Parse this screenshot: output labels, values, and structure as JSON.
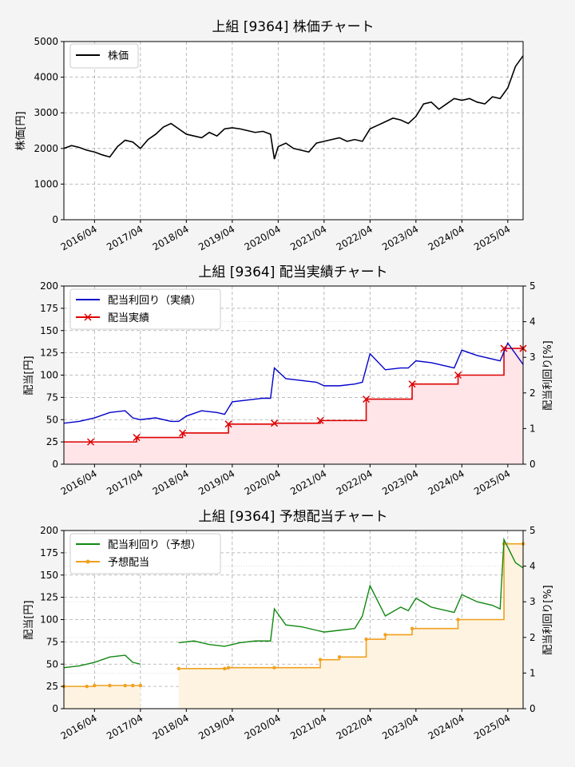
{
  "colors": {
    "background": "#f4f4f4",
    "price": "#000000",
    "actual_yield": "#0000cc",
    "actual_dividend": "#dd0000",
    "actual_fill": "#ffe4e8",
    "forecast_yield": "#118811",
    "forecast_dividend": "#f0a020",
    "forecast_fill": "#fdf3e0"
  },
  "chart_data": [
    {
      "type": "line",
      "title": "上組 [9364]  株価チャート",
      "ylabel": "株価[円]",
      "ylim": [
        0,
        5000
      ],
      "yticks": [
        "0",
        "1000",
        "2000",
        "3000",
        "4000",
        "5000"
      ],
      "x_tick_labels": [
        "2016/04",
        "2017/04",
        "2018/04",
        "2019/04",
        "2020/04",
        "2021/04",
        "2022/04",
        "2023/04",
        "2024/04",
        "2025/04"
      ],
      "x_range": [
        "2015/08",
        "2025/08"
      ],
      "grid": true,
      "legend": {
        "position": "top-left",
        "entries": [
          "株価"
        ]
      },
      "series": [
        {
          "name": "株価",
          "x": [
            "2015/08",
            "2015/10",
            "2015/12",
            "2016/02",
            "2016/04",
            "2016/06",
            "2016/08",
            "2016/10",
            "2016/12",
            "2017/02",
            "2017/04",
            "2017/06",
            "2017/08",
            "2017/10",
            "2017/12",
            "2018/02",
            "2018/04",
            "2018/06",
            "2018/08",
            "2018/10",
            "2018/12",
            "2019/02",
            "2019/04",
            "2019/06",
            "2019/08",
            "2019/10",
            "2019/12",
            "2020/02",
            "2020/03",
            "2020/04",
            "2020/06",
            "2020/08",
            "2020/10",
            "2020/12",
            "2021/02",
            "2021/04",
            "2021/06",
            "2021/08",
            "2021/10",
            "2021/12",
            "2022/02",
            "2022/04",
            "2022/06",
            "2022/08",
            "2022/10",
            "2022/12",
            "2023/02",
            "2023/04",
            "2023/06",
            "2023/08",
            "2023/10",
            "2023/12",
            "2024/02",
            "2024/04",
            "2024/06",
            "2024/08",
            "2024/10",
            "2024/12",
            "2025/02",
            "2025/04",
            "2025/06",
            "2025/08"
          ],
          "y": [
            2000,
            2080,
            2030,
            1950,
            1900,
            1820,
            1760,
            2050,
            2230,
            2180,
            2000,
            2250,
            2400,
            2600,
            2700,
            2550,
            2400,
            2350,
            2300,
            2450,
            2350,
            2550,
            2580,
            2550,
            2500,
            2450,
            2480,
            2400,
            1700,
            2050,
            2150,
            2000,
            1950,
            1900,
            2150,
            2200,
            2250,
            2300,
            2200,
            2250,
            2200,
            2550,
            2650,
            2750,
            2850,
            2800,
            2700,
            2900,
            3250,
            3300,
            3100,
            3250,
            3400,
            3350,
            3400,
            3300,
            3250,
            3450,
            3400,
            3700,
            4300,
            4600
          ]
        }
      ]
    },
    {
      "type": "line",
      "title": "上組 [9364]  配当実績チャート",
      "ylabel": "配当[円]",
      "y2label": "配当利回り[%]",
      "ylim": [
        0,
        200
      ],
      "yticks": [
        "0",
        "25",
        "50",
        "75",
        "100",
        "125",
        "150",
        "175",
        "200"
      ],
      "y2lim": [
        0,
        5
      ],
      "y2ticks": [
        "0",
        "1",
        "2",
        "3",
        "4",
        "5"
      ],
      "x_tick_labels": [
        "2016/04",
        "2017/04",
        "2018/04",
        "2019/04",
        "2020/04",
        "2021/04",
        "2022/04",
        "2023/04",
        "2024/04",
        "2025/04"
      ],
      "x_range": [
        "2015/08",
        "2025/08"
      ],
      "grid": true,
      "legend": {
        "position": "top-left",
        "entries": [
          "配当利回り（実績）",
          "配当実績"
        ]
      },
      "series": [
        {
          "name": "配当利回り（実績）",
          "axis": "right",
          "x": [
            "2015/08",
            "2015/12",
            "2016/04",
            "2016/08",
            "2016/12",
            "2017/02",
            "2017/04",
            "2017/08",
            "2017/12",
            "2018/02",
            "2018/04",
            "2018/08",
            "2018/12",
            "2019/02",
            "2019/04",
            "2019/08",
            "2019/12",
            "2020/02",
            "2020/03",
            "2020/06",
            "2020/10",
            "2021/02",
            "2021/04",
            "2021/08",
            "2021/12",
            "2022/02",
            "2022/04",
            "2022/08",
            "2022/12",
            "2023/02",
            "2023/04",
            "2023/08",
            "2023/12",
            "2024/02",
            "2024/04",
            "2024/08",
            "2024/12",
            "2025/02",
            "2025/04",
            "2025/08"
          ],
          "y": [
            1.15,
            1.2,
            1.3,
            1.45,
            1.5,
            1.3,
            1.25,
            1.3,
            1.2,
            1.2,
            1.35,
            1.5,
            1.45,
            1.4,
            1.75,
            1.8,
            1.85,
            1.85,
            2.7,
            2.4,
            2.35,
            2.3,
            2.2,
            2.2,
            2.25,
            2.3,
            3.1,
            2.65,
            2.7,
            2.7,
            2.9,
            2.85,
            2.75,
            2.7,
            3.2,
            3.05,
            2.95,
            2.9,
            3.4,
            2.8
          ]
        },
        {
          "name": "配当実績",
          "axis": "left",
          "x": [
            "2016/03",
            "2017/03",
            "2018/03",
            "2019/03",
            "2020/03",
            "2021/03",
            "2022/03",
            "2023/03",
            "2024/03",
            "2025/03",
            "2025/08"
          ],
          "y": [
            25,
            30,
            35,
            45,
            46,
            49,
            73,
            90,
            100,
            130,
            130
          ]
        }
      ]
    },
    {
      "type": "line",
      "title": "上組 [9364]  予想配当チャート",
      "ylabel": "配当[円]",
      "y2label": "配当利回り[%]",
      "ylim": [
        0,
        200
      ],
      "yticks": [
        "0",
        "25",
        "50",
        "75",
        "100",
        "125",
        "150",
        "175",
        "200"
      ],
      "y2lim": [
        0,
        5
      ],
      "y2ticks": [
        "0",
        "1",
        "2",
        "3",
        "4",
        "5"
      ],
      "x_tick_labels": [
        "2016/04",
        "2017/04",
        "2018/04",
        "2019/04",
        "2020/04",
        "2021/04",
        "2022/04",
        "2023/04",
        "2024/04",
        "2025/04"
      ],
      "x_range": [
        "2015/08",
        "2025/08"
      ],
      "grid": true,
      "legend": {
        "position": "top-left",
        "entries": [
          "配当利回り（予想）",
          "予想配当"
        ]
      },
      "series": [
        {
          "name": "配当利回り（予想）",
          "axis": "right",
          "segments": [
            {
              "x": [
                "2015/08",
                "2015/12",
                "2016/04",
                "2016/08",
                "2016/12",
                "2017/02",
                "2017/04"
              ],
              "y": [
                1.15,
                1.2,
                1.3,
                1.45,
                1.5,
                1.3,
                1.25
              ]
            },
            {
              "x": [
                "2018/02",
                "2018/06",
                "2018/10",
                "2019/02",
                "2019/06",
                "2019/10",
                "2020/02",
                "2020/03",
                "2020/06",
                "2020/10",
                "2021/02",
                "2021/04",
                "2021/08",
                "2021/12",
                "2022/02",
                "2022/04",
                "2022/08",
                "2022/12",
                "2023/02",
                "2023/04",
                "2023/08",
                "2023/12",
                "2024/02",
                "2024/04",
                "2024/08",
                "2024/12",
                "2025/02",
                "2025/03",
                "2025/06",
                "2025/08"
              ],
              "y": [
                1.85,
                1.9,
                1.8,
                1.75,
                1.85,
                1.9,
                1.9,
                2.8,
                2.35,
                2.3,
                2.2,
                2.15,
                2.2,
                2.25,
                2.6,
                3.45,
                2.6,
                2.85,
                2.75,
                3.1,
                2.85,
                2.75,
                2.7,
                3.2,
                3.0,
                2.9,
                2.8,
                4.75,
                4.1,
                3.95
              ]
            }
          ]
        },
        {
          "name": "予想配当",
          "axis": "left",
          "segments": [
            {
              "x": [
                "2015/08",
                "2016/02",
                "2016/04",
                "2016/08",
                "2016/12",
                "2017/02",
                "2017/04"
              ],
              "y": [
                25,
                25,
                26,
                26,
                26,
                26,
                26
              ]
            },
            {
              "x": [
                "2018/02",
                "2019/02",
                "2019/03",
                "2020/03",
                "2021/03",
                "2021/08",
                "2022/03",
                "2022/08",
                "2023/03",
                "2024/03",
                "2025/03",
                "2025/08"
              ],
              "y": [
                45,
                45,
                46,
                46,
                55,
                58,
                78,
                83,
                90,
                100,
                185,
                185
              ]
            }
          ]
        }
      ]
    }
  ]
}
